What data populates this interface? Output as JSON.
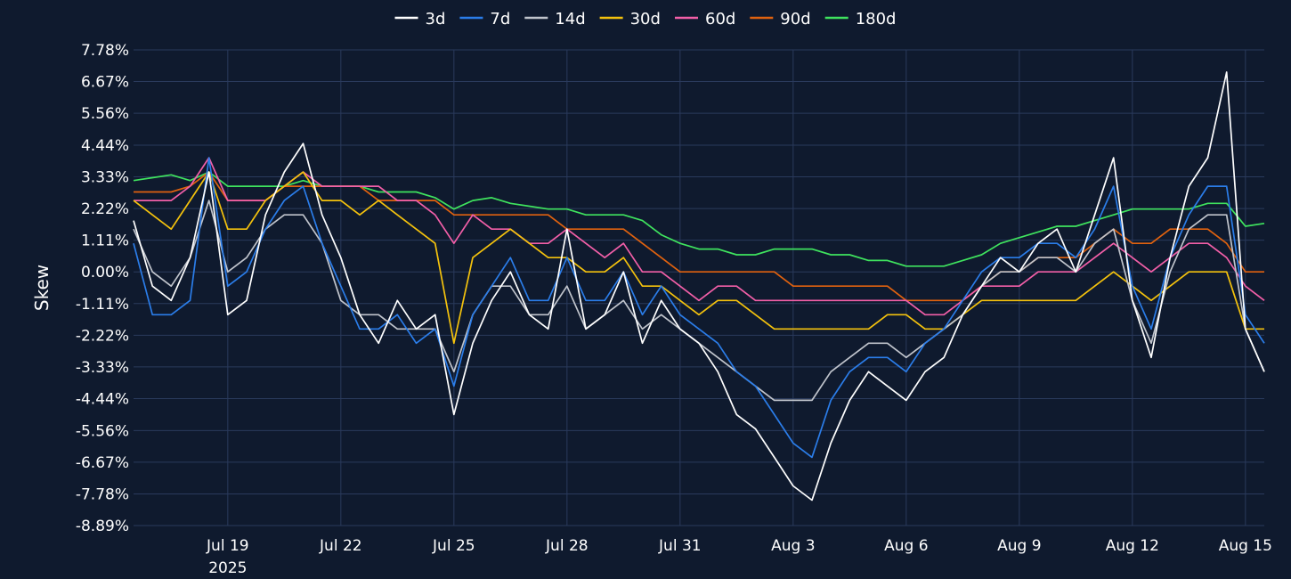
{
  "chart_data": {
    "type": "line",
    "ylabel": "Skew",
    "ylim": [
      -8.89,
      7.78
    ],
    "y_ticks": [
      "7.78%",
      "6.67%",
      "5.56%",
      "4.44%",
      "3.33%",
      "2.22%",
      "1.11%",
      "0.00%",
      "-1.11%",
      "-2.22%",
      "-3.33%",
      "-4.44%",
      "-5.56%",
      "-6.67%",
      "-7.78%",
      "-8.89%"
    ],
    "y_tick_values": [
      7.78,
      6.67,
      5.56,
      4.44,
      3.33,
      2.22,
      1.11,
      0.0,
      -1.11,
      -2.22,
      -3.33,
      -4.44,
      -5.56,
      -6.67,
      -7.78,
      -8.89
    ],
    "x_range": [
      "2025-07-16T12:00",
      "2025-08-15T12:00"
    ],
    "x_ticks": [
      {
        "date": "2025-07-19",
        "label": "Jul 19",
        "sublabel": "2025"
      },
      {
        "date": "2025-07-22",
        "label": "Jul 22",
        "sublabel": ""
      },
      {
        "date": "2025-07-25",
        "label": "Jul 25",
        "sublabel": ""
      },
      {
        "date": "2025-07-28",
        "label": "Jul 28",
        "sublabel": ""
      },
      {
        "date": "2025-07-31",
        "label": "Jul 31",
        "sublabel": ""
      },
      {
        "date": "2025-08-03",
        "label": "Aug 3",
        "sublabel": ""
      },
      {
        "date": "2025-08-06",
        "label": "Aug 6",
        "sublabel": ""
      },
      {
        "date": "2025-08-09",
        "label": "Aug 9",
        "sublabel": ""
      },
      {
        "date": "2025-08-12",
        "label": "Aug 12",
        "sublabel": ""
      },
      {
        "date": "2025-08-15",
        "label": "Aug 15",
        "sublabel": ""
      }
    ],
    "grid": true,
    "legend_position": "top-center",
    "x": [
      "2025-07-16T12:00",
      "2025-07-17T00:00",
      "2025-07-17T12:00",
      "2025-07-18T00:00",
      "2025-07-18T12:00",
      "2025-07-19T00:00",
      "2025-07-19T12:00",
      "2025-07-20T00:00",
      "2025-07-20T12:00",
      "2025-07-21T00:00",
      "2025-07-21T12:00",
      "2025-07-22T00:00",
      "2025-07-22T12:00",
      "2025-07-23T00:00",
      "2025-07-23T12:00",
      "2025-07-24T00:00",
      "2025-07-24T12:00",
      "2025-07-25T00:00",
      "2025-07-25T12:00",
      "2025-07-26T00:00",
      "2025-07-26T12:00",
      "2025-07-27T00:00",
      "2025-07-27T12:00",
      "2025-07-28T00:00",
      "2025-07-28T12:00",
      "2025-07-29T00:00",
      "2025-07-29T12:00",
      "2025-07-30T00:00",
      "2025-07-30T12:00",
      "2025-07-31T00:00",
      "2025-07-31T12:00",
      "2025-08-01T00:00",
      "2025-08-01T12:00",
      "2025-08-02T00:00",
      "2025-08-02T12:00",
      "2025-08-03T00:00",
      "2025-08-03T12:00",
      "2025-08-04T00:00",
      "2025-08-04T12:00",
      "2025-08-05T00:00",
      "2025-08-05T12:00",
      "2025-08-06T00:00",
      "2025-08-06T12:00",
      "2025-08-07T00:00",
      "2025-08-07T12:00",
      "2025-08-08T00:00",
      "2025-08-08T12:00",
      "2025-08-09T00:00",
      "2025-08-09T12:00",
      "2025-08-10T00:00",
      "2025-08-10T12:00",
      "2025-08-11T00:00",
      "2025-08-11T12:00",
      "2025-08-12T00:00",
      "2025-08-12T12:00",
      "2025-08-13T00:00",
      "2025-08-13T12:00",
      "2025-08-14T00:00",
      "2025-08-14T12:00",
      "2025-08-15T00:00",
      "2025-08-15T12:00"
    ],
    "series": [
      {
        "name": "3d",
        "color": "#ffffff",
        "values": [
          1.8,
          -0.5,
          -1.0,
          0.5,
          3.5,
          -1.5,
          -1.0,
          2.0,
          3.5,
          4.5,
          2.0,
          0.5,
          -1.5,
          -2.5,
          -1.0,
          -2.0,
          -1.5,
          -5.0,
          -2.5,
          -1.0,
          0.0,
          -1.5,
          -2.0,
          1.5,
          -2.0,
          -1.5,
          0.0,
          -2.5,
          -1.0,
          -2.0,
          -2.5,
          -3.5,
          -5.0,
          -5.5,
          -6.5,
          -7.5,
          -8.0,
          -6.0,
          -4.5,
          -3.5,
          -4.0,
          -4.5,
          -3.5,
          -3.0,
          -1.5,
          -0.5,
          0.5,
          0.0,
          1.0,
          1.5,
          0.0,
          2.0,
          4.0,
          -1.0,
          -3.0,
          0.5,
          3.0,
          4.0,
          7.0,
          -2.0,
          -3.5
        ]
      },
      {
        "name": "7d",
        "color": "#2b7de9",
        "values": [
          1.0,
          -1.5,
          -1.5,
          -1.0,
          4.0,
          -0.5,
          0.0,
          1.5,
          2.5,
          3.0,
          1.0,
          -0.5,
          -2.0,
          -2.0,
          -1.5,
          -2.5,
          -2.0,
          -4.0,
          -1.5,
          -0.5,
          0.5,
          -1.0,
          -1.0,
          0.5,
          -1.0,
          -1.0,
          0.0,
          -1.5,
          -0.5,
          -1.5,
          -2.0,
          -2.5,
          -3.5,
          -4.0,
          -5.0,
          -6.0,
          -6.5,
          -4.5,
          -3.5,
          -3.0,
          -3.0,
          -3.5,
          -2.5,
          -2.0,
          -1.0,
          0.0,
          0.5,
          0.5,
          1.0,
          1.0,
          0.5,
          1.5,
          3.0,
          -0.5,
          -2.0,
          0.5,
          2.0,
          3.0,
          3.0,
          -1.5,
          -2.5
        ]
      },
      {
        "name": "14d",
        "color": "#c0c4cc",
        "values": [
          1.5,
          0.0,
          -0.5,
          0.5,
          2.5,
          0.0,
          0.5,
          1.5,
          2.0,
          2.0,
          1.0,
          -1.0,
          -1.5,
          -1.5,
          -2.0,
          -2.0,
          -2.0,
          -3.5,
          -1.5,
          -0.5,
          -0.5,
          -1.5,
          -1.5,
          -0.5,
          -2.0,
          -1.5,
          -1.0,
          -2.0,
          -1.5,
          -2.0,
          -2.5,
          -3.0,
          -3.5,
          -4.0,
          -4.5,
          -4.5,
          -4.5,
          -3.5,
          -3.0,
          -2.5,
          -2.5,
          -3.0,
          -2.5,
          -2.0,
          -1.5,
          -0.5,
          0.0,
          0.0,
          0.5,
          0.5,
          0.0,
          1.0,
          1.5,
          -1.0,
          -2.5,
          0.0,
          1.5,
          2.0,
          2.0,
          -2.0,
          -3.5
        ]
      },
      {
        "name": "30d",
        "color": "#f4c20d",
        "values": [
          2.5,
          2.0,
          1.5,
          2.5,
          3.5,
          1.5,
          1.5,
          2.5,
          3.0,
          3.5,
          2.5,
          2.5,
          2.0,
          2.5,
          2.0,
          1.5,
          1.0,
          -2.5,
          0.5,
          1.0,
          1.5,
          1.0,
          0.5,
          0.5,
          0.0,
          0.0,
          0.5,
          -0.5,
          -0.5,
          -1.0,
          -1.5,
          -1.0,
          -1.0,
          -1.5,
          -2.0,
          -2.0,
          -2.0,
          -2.0,
          -2.0,
          -2.0,
          -1.5,
          -1.5,
          -2.0,
          -2.0,
          -1.5,
          -1.0,
          -1.0,
          -1.0,
          -1.0,
          -1.0,
          -1.0,
          -0.5,
          0.0,
          -0.5,
          -1.0,
          -0.5,
          0.0,
          0.0,
          0.0,
          -2.0,
          -2.0
        ]
      },
      {
        "name": "60d",
        "color": "#f25fa8",
        "values": [
          2.5,
          2.5,
          2.5,
          3.0,
          4.0,
          2.5,
          2.5,
          2.5,
          3.0,
          3.5,
          3.0,
          3.0,
          3.0,
          3.0,
          2.5,
          2.5,
          2.0,
          1.0,
          2.0,
          1.5,
          1.5,
          1.0,
          1.0,
          1.5,
          1.0,
          0.5,
          1.0,
          0.0,
          0.0,
          -0.5,
          -1.0,
          -0.5,
          -0.5,
          -1.0,
          -1.0,
          -1.0,
          -1.0,
          -1.0,
          -1.0,
          -1.0,
          -1.0,
          -1.0,
          -1.5,
          -1.5,
          -1.0,
          -0.5,
          -0.5,
          -0.5,
          0.0,
          0.0,
          0.0,
          0.5,
          1.0,
          0.5,
          0.0,
          0.5,
          1.0,
          1.0,
          0.5,
          -0.5,
          -1.0
        ]
      },
      {
        "name": "90d",
        "color": "#e0620f",
        "values": [
          2.8,
          2.8,
          2.8,
          3.0,
          3.5,
          2.5,
          2.5,
          2.5,
          3.0,
          3.0,
          3.0,
          3.0,
          3.0,
          2.5,
          2.5,
          2.5,
          2.5,
          2.0,
          2.0,
          2.0,
          2.0,
          2.0,
          2.0,
          1.5,
          1.5,
          1.5,
          1.5,
          1.0,
          0.5,
          0.0,
          0.0,
          0.0,
          0.0,
          0.0,
          0.0,
          -0.5,
          -0.5,
          -0.5,
          -0.5,
          -0.5,
          -0.5,
          -1.0,
          -1.0,
          -1.0,
          -1.0,
          -0.5,
          0.0,
          0.0,
          0.5,
          0.5,
          0.5,
          1.0,
          1.5,
          1.0,
          1.0,
          1.5,
          1.5,
          1.5,
          1.0,
          0.0,
          0.0
        ]
      },
      {
        "name": "180d",
        "color": "#3fe35e",
        "values": [
          3.2,
          3.3,
          3.4,
          3.2,
          3.5,
          3.0,
          3.0,
          3.0,
          3.0,
          3.2,
          3.0,
          3.0,
          3.0,
          2.8,
          2.8,
          2.8,
          2.6,
          2.2,
          2.5,
          2.6,
          2.4,
          2.3,
          2.2,
          2.2,
          2.0,
          2.0,
          2.0,
          1.8,
          1.3,
          1.0,
          0.8,
          0.8,
          0.6,
          0.6,
          0.8,
          0.8,
          0.8,
          0.6,
          0.6,
          0.4,
          0.4,
          0.2,
          0.2,
          0.2,
          0.4,
          0.6,
          1.0,
          1.2,
          1.4,
          1.6,
          1.6,
          1.8,
          2.0,
          2.2,
          2.2,
          2.2,
          2.2,
          2.4,
          2.4,
          1.6,
          1.7
        ]
      }
    ]
  }
}
